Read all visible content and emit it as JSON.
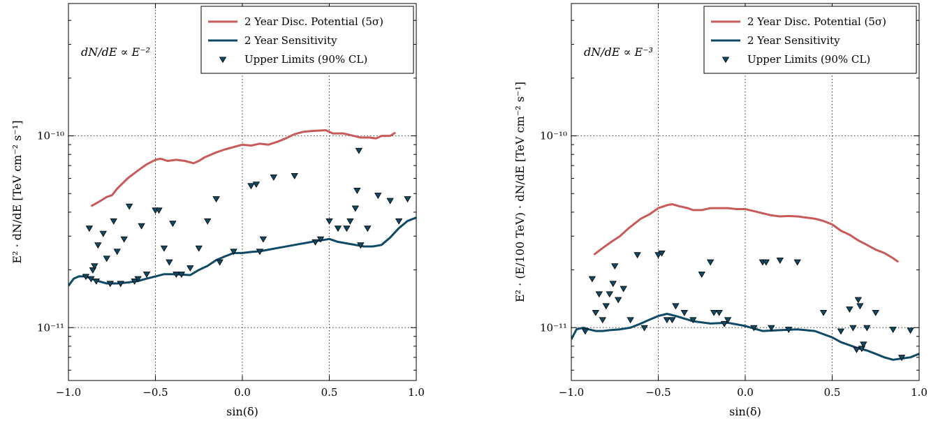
{
  "chart_data": [
    {
      "type": "line",
      "panel": "left",
      "annotation": "dN/dE ∝ E⁻²",
      "xlabel": "sin(δ)",
      "ylabel": "E² · dN/dE  [TeV cm⁻² s⁻¹]",
      "xlim": [
        -1.0,
        1.0
      ],
      "ylim": [
        5.3e-12,
        4.9e-10
      ],
      "yscale": "log",
      "grid": true,
      "legend_position": "top-right",
      "x_ticks": [
        {
          "value": -1.0,
          "label": "−1.0"
        },
        {
          "value": -0.5,
          "label": "−0.5"
        },
        {
          "value": 0.0,
          "label": "0.0"
        },
        {
          "value": 0.5,
          "label": "0.5"
        },
        {
          "value": 1.0,
          "label": "1.0"
        }
      ],
      "y_ticks": [
        {
          "value": 1e-11,
          "label": "10⁻¹¹"
        },
        {
          "value": 1e-10,
          "label": "10⁻¹⁰"
        }
      ],
      "series": [
        {
          "name": "2 Year Disc. Potential (5σ)",
          "kind": "line",
          "color": "#c95a5a",
          "x": [
            -0.87,
            -0.83,
            -0.78,
            -0.75,
            -0.72,
            -0.66,
            -0.6,
            -0.55,
            -0.5,
            -0.47,
            -0.43,
            -0.38,
            -0.33,
            -0.28,
            -0.25,
            -0.22,
            -0.15,
            -0.1,
            0.0,
            0.05,
            0.1,
            0.15,
            0.2,
            0.25,
            0.3,
            0.35,
            0.4,
            0.48,
            0.52,
            0.58,
            0.62,
            0.68,
            0.73,
            0.77,
            0.8,
            0.85,
            0.88
          ],
          "y": [
            4.3e-11,
            4.5e-11,
            4.8e-11,
            4.9e-11,
            5.3e-11,
            6e-11,
            6.6e-11,
            7.1e-11,
            7.5e-11,
            7.6e-11,
            7.4e-11,
            7.5e-11,
            7.4e-11,
            7.2e-11,
            7.4e-11,
            7.7e-11,
            8.2e-11,
            8.5e-11,
            9e-11,
            8.9e-11,
            9.1e-11,
            9e-11,
            9.3e-11,
            9.7e-11,
            1.02e-10,
            1.05e-10,
            1.06e-10,
            1.07e-10,
            1.03e-10,
            1.03e-10,
            1.01e-10,
            9.8e-11,
            9.8e-11,
            9.7e-11,
            1e-10,
            1e-10,
            1.04e-10
          ]
        },
        {
          "name": "2 Year Sensitivity",
          "kind": "line",
          "color": "#0e4a66",
          "x": [
            -1.0,
            -0.97,
            -0.94,
            -0.9,
            -0.87,
            -0.83,
            -0.78,
            -0.72,
            -0.66,
            -0.6,
            -0.55,
            -0.5,
            -0.45,
            -0.4,
            -0.3,
            -0.25,
            -0.2,
            -0.15,
            -0.1,
            -0.05,
            0.0,
            0.05,
            0.1,
            0.15,
            0.2,
            0.3,
            0.4,
            0.5,
            0.55,
            0.6,
            0.65,
            0.7,
            0.75,
            0.8,
            0.85,
            0.9,
            0.95,
            1.0
          ],
          "y": [
            1.65e-11,
            1.8e-11,
            1.85e-11,
            1.85e-11,
            1.8e-11,
            1.75e-11,
            1.7e-11,
            1.7e-11,
            1.72e-11,
            1.75e-11,
            1.8e-11,
            1.85e-11,
            1.9e-11,
            1.9e-11,
            1.88e-11,
            2e-11,
            2.1e-11,
            2.25e-11,
            2.35e-11,
            2.45e-11,
            2.45e-11,
            2.48e-11,
            2.5e-11,
            2.55e-11,
            2.6e-11,
            2.7e-11,
            2.8e-11,
            2.9e-11,
            2.8e-11,
            2.75e-11,
            2.7e-11,
            2.65e-11,
            2.65e-11,
            2.7e-11,
            2.95e-11,
            3.3e-11,
            3.6e-11,
            3.75e-11
          ]
        },
        {
          "name": "Upper Limits (90% CL)",
          "kind": "scatter",
          "marker": "triangle-down",
          "color": "#0e4a66",
          "x": [
            -0.9,
            -0.88,
            -0.87,
            -0.86,
            -0.85,
            -0.84,
            -0.83,
            -0.8,
            -0.78,
            -0.76,
            -0.74,
            -0.72,
            -0.7,
            -0.68,
            -0.65,
            -0.62,
            -0.6,
            -0.58,
            -0.55,
            -0.5,
            -0.48,
            -0.45,
            -0.42,
            -0.4,
            -0.38,
            -0.35,
            -0.3,
            -0.25,
            -0.2,
            -0.15,
            -0.13,
            -0.05,
            0.05,
            0.08,
            0.1,
            0.12,
            0.18,
            0.3,
            0.42,
            0.45,
            0.5,
            0.55,
            0.6,
            0.62,
            0.65,
            0.66,
            0.67,
            0.68,
            0.72,
            0.78,
            0.85,
            0.9,
            0.95
          ],
          "y": [
            1.85e-11,
            3.3e-11,
            1.8e-11,
            2e-11,
            2.1e-11,
            1.75e-11,
            2.7e-11,
            3.1e-11,
            2.3e-11,
            1.7e-11,
            3.6e-11,
            2.5e-11,
            1.7e-11,
            2.9e-11,
            4.3e-11,
            1.75e-11,
            1.8e-11,
            3.4e-11,
            1.9e-11,
            4.1e-11,
            4.1e-11,
            2.6e-11,
            2.2e-11,
            3.5e-11,
            1.9e-11,
            1.9e-11,
            2.05e-11,
            2.6e-11,
            3.6e-11,
            4.7e-11,
            2.2e-11,
            2.5e-11,
            5.5e-11,
            5.6e-11,
            2.5e-11,
            2.9e-11,
            6.1e-11,
            6.2e-11,
            2.8e-11,
            2.9e-11,
            3.6e-11,
            3.3e-11,
            3.3e-11,
            3.6e-11,
            4.2e-11,
            5.2e-11,
            8.4e-11,
            2.7e-11,
            3.3e-11,
            4.9e-11,
            4.6e-11,
            3.6e-11,
            4.7e-11
          ]
        }
      ]
    },
    {
      "type": "line",
      "panel": "right",
      "annotation": "dN/dE ∝ E⁻³",
      "xlabel": "sin(δ)",
      "ylabel": "E² · (E/100 TeV) · dN/dE  [TeV cm⁻² s⁻¹]",
      "xlim": [
        -1.0,
        1.0
      ],
      "ylim": [
        5.3e-12,
        4.9e-10
      ],
      "yscale": "log",
      "grid": true,
      "legend_position": "top-right",
      "x_ticks": [
        {
          "value": -1.0,
          "label": "−1.0"
        },
        {
          "value": -0.5,
          "label": "−0.5"
        },
        {
          "value": 0.0,
          "label": "0.0"
        },
        {
          "value": 0.5,
          "label": "0.5"
        },
        {
          "value": 1.0,
          "label": "1.0"
        }
      ],
      "y_ticks": [
        {
          "value": 1e-11,
          "label": "10⁻¹¹"
        },
        {
          "value": 1e-10,
          "label": "10⁻¹⁰"
        }
      ],
      "series": [
        {
          "name": "2 Year Disc. Potential (5σ)",
          "kind": "line",
          "color": "#c95a5a",
          "x": [
            -0.87,
            -0.82,
            -0.77,
            -0.72,
            -0.67,
            -0.6,
            -0.55,
            -0.5,
            -0.45,
            -0.42,
            -0.38,
            -0.33,
            -0.3,
            -0.25,
            -0.2,
            -0.15,
            -0.1,
            -0.05,
            0.0,
            0.05,
            0.1,
            0.15,
            0.2,
            0.25,
            0.3,
            0.35,
            0.4,
            0.45,
            0.5,
            0.55,
            0.6,
            0.65,
            0.7,
            0.75,
            0.8,
            0.85,
            0.88
          ],
          "y": [
            2.4e-11,
            2.6e-11,
            2.8e-11,
            3e-11,
            3.3e-11,
            3.7e-11,
            3.9e-11,
            4.2e-11,
            4.35e-11,
            4.4e-11,
            4.3e-11,
            4.2e-11,
            4.1e-11,
            4.1e-11,
            4.2e-11,
            4.2e-11,
            4.2e-11,
            4.15e-11,
            4.15e-11,
            4.05e-11,
            3.95e-11,
            3.85e-11,
            3.8e-11,
            3.82e-11,
            3.8e-11,
            3.75e-11,
            3.7e-11,
            3.6e-11,
            3.45e-11,
            3.2e-11,
            3.05e-11,
            2.85e-11,
            2.7e-11,
            2.55e-11,
            2.45e-11,
            2.3e-11,
            2.2e-11
          ]
        },
        {
          "name": "2 Year Sensitivity",
          "kind": "line",
          "color": "#0e4a66",
          "x": [
            -1.0,
            -0.97,
            -0.93,
            -0.9,
            -0.86,
            -0.82,
            -0.78,
            -0.72,
            -0.66,
            -0.6,
            -0.55,
            -0.5,
            -0.45,
            -0.4,
            -0.3,
            -0.2,
            -0.1,
            0.0,
            0.1,
            0.2,
            0.3,
            0.4,
            0.5,
            0.55,
            0.6,
            0.65,
            0.7,
            0.75,
            0.8,
            0.85,
            0.9,
            0.95,
            1.0
          ],
          "y": [
            8.7e-12,
            9.8e-12,
            1e-11,
            9.8e-12,
            9.6e-12,
            9.6e-12,
            9.7e-12,
            9.8e-12,
            1e-11,
            1.05e-11,
            1.1e-11,
            1.15e-11,
            1.18e-11,
            1.15e-11,
            1.08e-11,
            1.05e-11,
            1.06e-11,
            1.02e-11,
            9.6e-12,
            9.7e-12,
            9.8e-12,
            9.6e-12,
            8.9e-12,
            8.4e-12,
            8.1e-12,
            7.8e-12,
            7.6e-12,
            7.3e-12,
            7e-12,
            6.8e-12,
            6.9e-12,
            7e-12,
            7.3e-12
          ]
        },
        {
          "name": "Upper Limits (90% CL)",
          "kind": "scatter",
          "marker": "triangle-down",
          "color": "#0e4a66",
          "x": [
            -0.92,
            -0.88,
            -0.86,
            -0.84,
            -0.82,
            -0.8,
            -0.78,
            -0.76,
            -0.75,
            -0.73,
            -0.7,
            -0.66,
            -0.62,
            -0.58,
            -0.5,
            -0.48,
            -0.45,
            -0.42,
            -0.4,
            -0.35,
            -0.3,
            -0.25,
            -0.2,
            -0.18,
            -0.15,
            -0.12,
            -0.1,
            0.05,
            0.1,
            0.12,
            0.15,
            0.2,
            0.25,
            0.3,
            0.45,
            0.55,
            0.6,
            0.62,
            0.64,
            0.65,
            0.66,
            0.67,
            0.68,
            0.7,
            0.75,
            0.85,
            0.9,
            0.95
          ],
          "y": [
            9.6e-12,
            1.8e-11,
            1.2e-11,
            1.5e-11,
            1.1e-11,
            1.3e-11,
            1.5e-11,
            1.7e-11,
            2.1e-11,
            1.4e-11,
            1.6e-11,
            1.1e-11,
            2.4e-11,
            1e-11,
            2.4e-11,
            2.45e-11,
            1.1e-11,
            1.1e-11,
            1.3e-11,
            1.2e-11,
            1.1e-11,
            1.9e-11,
            2.2e-11,
            1.2e-11,
            1.2e-11,
            1.05e-11,
            1.1e-11,
            1e-11,
            2.2e-11,
            2.2e-11,
            1e-11,
            2.25e-11,
            9.8e-12,
            2.2e-11,
            1.2e-11,
            9.6e-12,
            1.25e-11,
            1e-11,
            7.7e-12,
            1.4e-11,
            1.3e-11,
            7.8e-12,
            8.2e-12,
            1e-11,
            1.2e-11,
            9.8e-12,
            7e-12,
            9.7e-12
          ]
        }
      ]
    }
  ]
}
